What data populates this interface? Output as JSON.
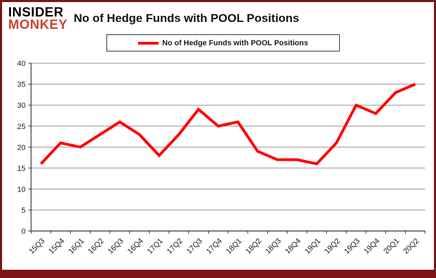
{
  "header": {
    "logo_line1": "INSIDER",
    "logo_line2": "MONKEY",
    "title": "No of Hedge Funds with POOL Positions"
  },
  "legend": {
    "label": "No of Hedge Funds with POOL Positions"
  },
  "colors": {
    "line": "#ff0000",
    "frame": "#7d1315",
    "logo_red": "#cc4230",
    "grid": "#8f8f8f",
    "axis": "#333333",
    "text": "#1a1a1a"
  },
  "chart_data": {
    "type": "line",
    "title": "No of Hedge Funds with POOL Positions",
    "categories": [
      "15Q3",
      "15Q4",
      "16Q1",
      "16Q2",
      "16Q3",
      "16Q4",
      "17Q1",
      "17Q2",
      "17Q3",
      "17Q4",
      "18Q1",
      "18Q2",
      "18Q3",
      "18Q4",
      "19Q1",
      "19Q2",
      "19Q3",
      "19Q4",
      "20Q1",
      "20Q2"
    ],
    "series": [
      {
        "name": "No of Hedge Funds with POOL Positions",
        "values": [
          16,
          21,
          20,
          23,
          26,
          23,
          18,
          23,
          29,
          25,
          26,
          19,
          17,
          17,
          16,
          21,
          30,
          28,
          33,
          35
        ]
      }
    ],
    "xlabel": "",
    "ylabel": "",
    "ylim": [
      0,
      40
    ],
    "yticks": [
      0,
      5,
      10,
      15,
      20,
      25,
      30,
      35,
      40
    ],
    "grid": true,
    "legend_position": "top-center"
  }
}
